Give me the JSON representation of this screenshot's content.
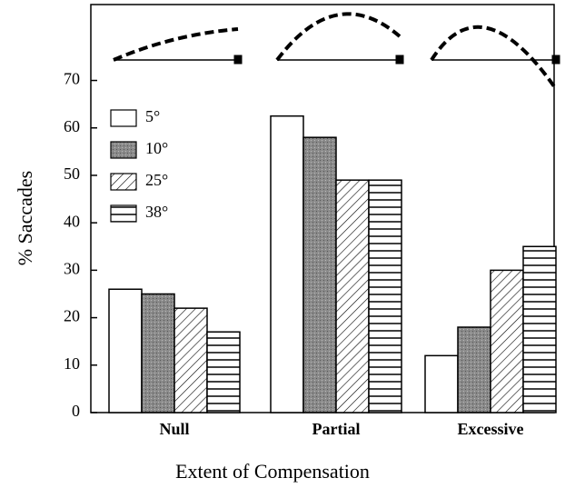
{
  "chart_data": {
    "type": "bar",
    "x_label": "Extent of Compensation",
    "y_label": "% Saccades",
    "categories": [
      "Null",
      "Partial",
      "Excessive"
    ],
    "series": [
      {
        "name": "5°",
        "pattern": "white",
        "values": [
          26,
          62.5,
          12
        ]
      },
      {
        "name": "10°",
        "pattern": "stipple",
        "values": [
          25,
          58,
          18
        ]
      },
      {
        "name": "25°",
        "pattern": "hatch",
        "values": [
          22,
          49,
          30
        ]
      },
      {
        "name": "38°",
        "pattern": "stripes",
        "values": [
          17,
          49,
          35
        ]
      }
    ],
    "ylim": [
      0,
      86
    ],
    "yticks": [
      0,
      10,
      20,
      30,
      40,
      50,
      60,
      70
    ]
  }
}
